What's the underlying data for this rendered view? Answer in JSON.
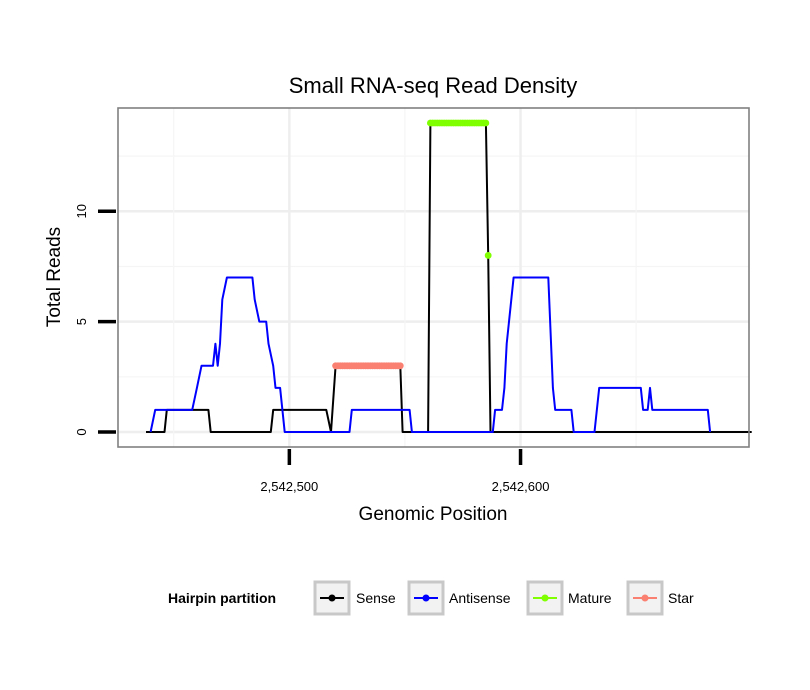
{
  "chart_data": {
    "type": "line",
    "title": "Small RNA-seq Read Density",
    "xlabel": "Genomic Position",
    "ylabel": "Total Reads",
    "xlim": [
      2542426,
      2542700
    ],
    "ylim": [
      -0.7,
      14.5
    ],
    "x_ticks": [
      {
        "value": 2542500,
        "label": "2,542,500"
      },
      {
        "value": 2542600,
        "label": "2,542,600"
      }
    ],
    "y_ticks": [
      {
        "value": 0,
        "label": "0"
      },
      {
        "value": 5,
        "label": "5"
      },
      {
        "value": 10,
        "label": "10"
      }
    ],
    "grid": true,
    "legend": {
      "title": "Hairpin partition",
      "position": "bottom",
      "entries": [
        {
          "name": "Sense",
          "color": "#000000"
        },
        {
          "name": "Antisense",
          "color": "#0000ff"
        },
        {
          "name": "Mature",
          "color": "#7fff00"
        },
        {
          "name": "Star",
          "color": "#fa8072"
        }
      ]
    },
    "series": [
      {
        "name": "Sense",
        "color": "#000000",
        "kind": "line",
        "points": [
          [
            2542438,
            0
          ],
          [
            2542446,
            0
          ],
          [
            2542447,
            1
          ],
          [
            2542465,
            1
          ],
          [
            2542466,
            0
          ],
          [
            2542492,
            0
          ],
          [
            2542493,
            1
          ],
          [
            2542516,
            1
          ],
          [
            2542518,
            0
          ],
          [
            2542520,
            3
          ],
          [
            2542548,
            3
          ],
          [
            2542549,
            0
          ],
          [
            2542560,
            0
          ],
          [
            2542561,
            14
          ],
          [
            2542585,
            14
          ],
          [
            2542586,
            8
          ],
          [
            2542587,
            0
          ],
          [
            2542700,
            0
          ]
        ]
      },
      {
        "name": "Antisense",
        "color": "#0000ff",
        "kind": "line",
        "points": [
          [
            2542440,
            0
          ],
          [
            2542442,
            1
          ],
          [
            2542456,
            1
          ],
          [
            2542458,
            1
          ],
          [
            2542460,
            2
          ],
          [
            2542462,
            3
          ],
          [
            2542467,
            3
          ],
          [
            2542468,
            4
          ],
          [
            2542469,
            3
          ],
          [
            2542470,
            4
          ],
          [
            2542471,
            6
          ],
          [
            2542473,
            7
          ],
          [
            2542484,
            7
          ],
          [
            2542485,
            6
          ],
          [
            2542487,
            5
          ],
          [
            2542490,
            5
          ],
          [
            2542491,
            4
          ],
          [
            2542493,
            3
          ],
          [
            2542494,
            2
          ],
          [
            2542496,
            2
          ],
          [
            2542497,
            1
          ],
          [
            2542498,
            0
          ],
          [
            2542526,
            0
          ],
          [
            2542527,
            1
          ],
          [
            2542552,
            1
          ],
          [
            2542553,
            0
          ],
          [
            2542588,
            0
          ],
          [
            2542589,
            1
          ],
          [
            2542592,
            1
          ],
          [
            2542593,
            2
          ],
          [
            2542594,
            4
          ],
          [
            2542597,
            7
          ],
          [
            2542612,
            7
          ],
          [
            2542614,
            2
          ],
          [
            2542615,
            1
          ],
          [
            2542622,
            1
          ],
          [
            2542623,
            0
          ],
          [
            2542632,
            0
          ],
          [
            2542634,
            2
          ],
          [
            2542652,
            2
          ],
          [
            2542653,
            1
          ],
          [
            2542655,
            1
          ],
          [
            2542656,
            2
          ],
          [
            2542657,
            1
          ],
          [
            2542681,
            1
          ],
          [
            2542682,
            0
          ]
        ]
      },
      {
        "name": "Mature",
        "color": "#7fff00",
        "kind": "markers",
        "points": [
          [
            2542561,
            14
          ],
          [
            2542562,
            14
          ],
          [
            2542563,
            14
          ],
          [
            2542564,
            14
          ],
          [
            2542565,
            14
          ],
          [
            2542566,
            14
          ],
          [
            2542567,
            14
          ],
          [
            2542568,
            14
          ],
          [
            2542569,
            14
          ],
          [
            2542570,
            14
          ],
          [
            2542571,
            14
          ],
          [
            2542572,
            14
          ],
          [
            2542573,
            14
          ],
          [
            2542574,
            14
          ],
          [
            2542575,
            14
          ],
          [
            2542576,
            14
          ],
          [
            2542577,
            14
          ],
          [
            2542578,
            14
          ],
          [
            2542579,
            14
          ],
          [
            2542580,
            14
          ],
          [
            2542581,
            14
          ],
          [
            2542582,
            14
          ],
          [
            2542583,
            14
          ],
          [
            2542584,
            14
          ],
          [
            2542585,
            14
          ],
          [
            2542586,
            8
          ]
        ]
      },
      {
        "name": "Star",
        "color": "#fa8072",
        "kind": "markers",
        "points": [
          [
            2542520,
            3
          ],
          [
            2542521,
            3
          ],
          [
            2542522,
            3
          ],
          [
            2542523,
            3
          ],
          [
            2542524,
            3
          ],
          [
            2542525,
            3
          ],
          [
            2542526,
            3
          ],
          [
            2542527,
            3
          ],
          [
            2542528,
            3
          ],
          [
            2542529,
            3
          ],
          [
            2542530,
            3
          ],
          [
            2542531,
            3
          ],
          [
            2542532,
            3
          ],
          [
            2542533,
            3
          ],
          [
            2542534,
            3
          ],
          [
            2542535,
            3
          ],
          [
            2542536,
            3
          ],
          [
            2542537,
            3
          ],
          [
            2542538,
            3
          ],
          [
            2542539,
            3
          ],
          [
            2542540,
            3
          ],
          [
            2542541,
            3
          ],
          [
            2542542,
            3
          ],
          [
            2542543,
            3
          ],
          [
            2542544,
            3
          ],
          [
            2542545,
            3
          ],
          [
            2542546,
            3
          ],
          [
            2542547,
            3
          ],
          [
            2542548,
            3
          ]
        ]
      }
    ]
  }
}
